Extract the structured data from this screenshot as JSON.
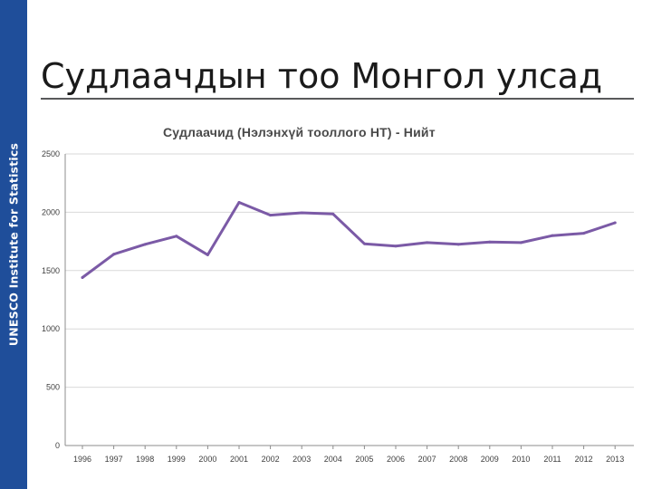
{
  "sidebar": {
    "label": "UNESCO Institute for Statistics",
    "color": "#1f4e9a"
  },
  "slide": {
    "title": "Судлаачдын тоо Монгол улсад"
  },
  "chart_data": {
    "type": "line",
    "title": "Судлаачид (Нэлэнхүй тооллого НТ) - Нийт",
    "x": [
      "1996",
      "1997",
      "1998",
      "1999",
      "2000",
      "2001",
      "2002",
      "2003",
      "2004",
      "2005",
      "2006",
      "2007",
      "2008",
      "2009",
      "2010",
      "2011",
      "2012",
      "2013"
    ],
    "series": [
      {
        "values": [
          1440,
          1640,
          1725,
          1795,
          1635,
          2085,
          1975,
          1995,
          1985,
          1730,
          1710,
          1740,
          1725,
          1745,
          1740,
          1800,
          1820,
          1910
        ]
      }
    ],
    "ylim": [
      0,
      2500
    ],
    "yticks": [
      0,
      500,
      1000,
      1500,
      2000,
      2500
    ],
    "xlabel": "",
    "ylabel": "",
    "grid": true,
    "line_color": "#7b5aa6"
  }
}
